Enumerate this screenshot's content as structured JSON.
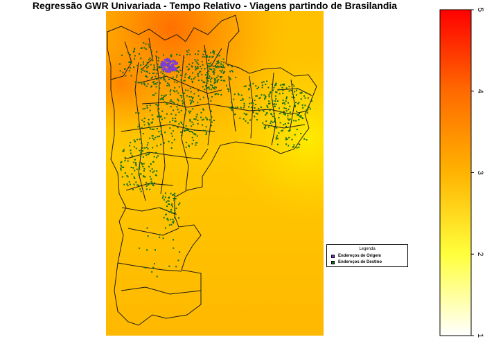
{
  "title": "Regressão GWR Univariada - Tempo Relativo - Viagens partindo de Brasilandia",
  "legend": {
    "title": "Legenda",
    "items": [
      {
        "label": "Endereços de Origem",
        "color": "#7b3fd6"
      },
      {
        "label": "Endereços de Destino",
        "color": "#0f6e1e"
      }
    ]
  },
  "color_scale": {
    "min": 1,
    "max": 5,
    "ticks": [
      1,
      2,
      3,
      4,
      5
    ],
    "colors": [
      "#ffffff",
      "#ffff3c",
      "#ffb300",
      "#ff6a00",
      "#ff0000"
    ]
  },
  "map": {
    "background_colors": {
      "hot": "#ff7a00",
      "mid": "#ffb400",
      "warm": "#ffd000",
      "pale": "#ffe000"
    },
    "boundary_color": "#1a1a1a"
  }
}
